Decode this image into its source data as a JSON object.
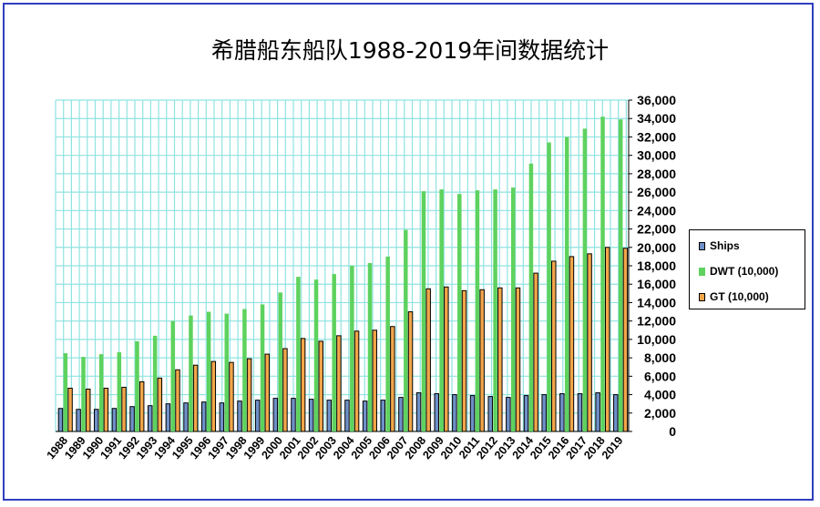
{
  "chart_data": {
    "type": "bar",
    "title": "希腊船东船队1988-2019年间数据统计",
    "categories": [
      "1988",
      "1989",
      "1990",
      "1991",
      "1992",
      "1993",
      "1994",
      "1995",
      "1996",
      "1997",
      "1998",
      "1999",
      "2000",
      "2001",
      "2002",
      "2003",
      "2004",
      "2005",
      "2006",
      "2007",
      "2008",
      "2009",
      "2010",
      "2011",
      "2012",
      "2013",
      "2014",
      "2015",
      "2016",
      "2017",
      "2018",
      "2019"
    ],
    "series": [
      {
        "name": "Ships",
        "color": "#6f90c8",
        "values": [
          2500,
          2400,
          2400,
          2500,
          2700,
          2800,
          3000,
          3100,
          3200,
          3100,
          3300,
          3400,
          3600,
          3600,
          3500,
          3400,
          3400,
          3300,
          3400,
          3700,
          4200,
          4100,
          4000,
          3900,
          3800,
          3700,
          3900,
          4000,
          4100,
          4100,
          4200,
          4000
        ]
      },
      {
        "name": "DWT (10,000)",
        "color": "#5ed25e",
        "values": [
          8500,
          8100,
          8400,
          8600,
          9800,
          10400,
          12000,
          12600,
          13000,
          12800,
          13300,
          13800,
          15100,
          16800,
          16500,
          17100,
          18000,
          18300,
          19000,
          21900,
          26100,
          26300,
          25800,
          26200,
          26300,
          26500,
          29100,
          31400,
          32000,
          32900,
          34200,
          33900
        ]
      },
      {
        "name": "GT (10,000)",
        "color": "#f2a64a",
        "values": [
          4700,
          4600,
          4700,
          4800,
          5400,
          5800,
          6700,
          7200,
          7600,
          7500,
          7900,
          8400,
          9000,
          10100,
          9800,
          10400,
          10900,
          11000,
          11400,
          13000,
          15500,
          15700,
          15300,
          15400,
          15600,
          15600,
          17200,
          18500,
          19000,
          19300,
          20000,
          19900
        ]
      }
    ],
    "ylim": [
      0,
      36000
    ],
    "yticks": [
      0,
      2000,
      4000,
      6000,
      8000,
      10000,
      12000,
      14000,
      16000,
      18000,
      20000,
      22000,
      24000,
      26000,
      28000,
      30000,
      32000,
      34000,
      36000
    ],
    "ytick_labels": [
      "0",
      "2,000",
      "4,000",
      "6,000",
      "8,000",
      "10,000",
      "12,000",
      "14,000",
      "16,000",
      "18,000",
      "20,000",
      "22,000",
      "24,000",
      "26,000",
      "28,000",
      "30,000",
      "32,000",
      "34,000",
      "36,000"
    ],
    "y_axis_side": "right",
    "grid": true,
    "grid_color": "#8fe3e0",
    "legend_position": "right"
  }
}
